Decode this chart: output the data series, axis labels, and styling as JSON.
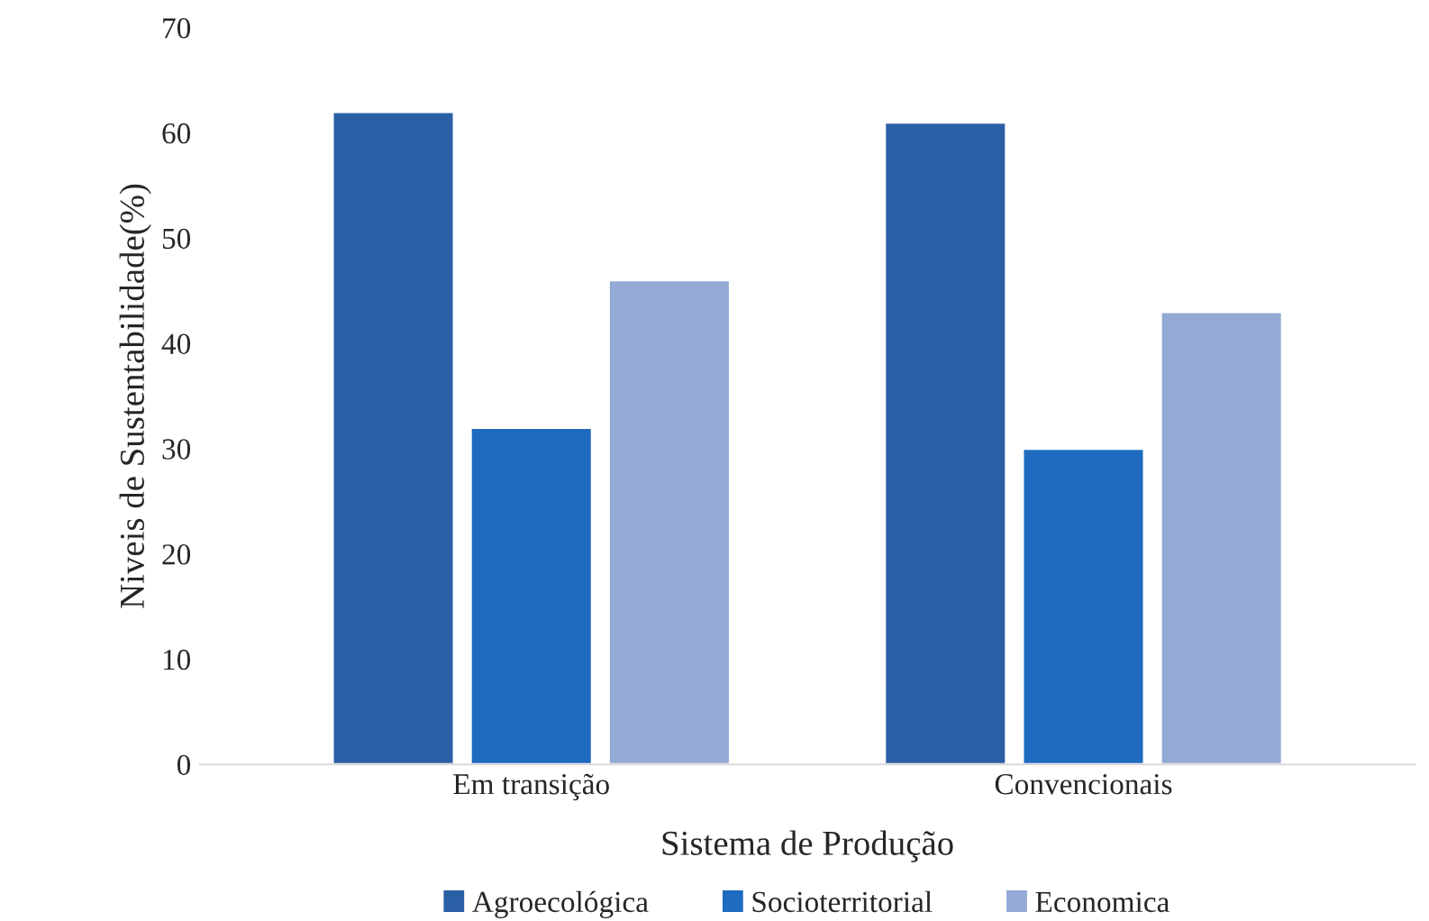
{
  "chart_data": {
    "type": "bar",
    "xlabel": "Sistema de Produção",
    "ylabel": "Niveis de Sustentabilidade(%)",
    "categories": [
      "Em transição",
      "Convencionais"
    ],
    "series": [
      {
        "name": "Agroecológica",
        "color": "#2b5fa5",
        "values": [
          62,
          61
        ]
      },
      {
        "name": "Socioterritorial",
        "color": "#1f6bbf",
        "values": [
          32,
          30
        ]
      },
      {
        "name": "Economica",
        "color": "#93a9d6",
        "values": [
          46,
          43
        ]
      }
    ],
    "ylim": [
      0,
      70
    ],
    "yticks": [
      0,
      10,
      20,
      30,
      40,
      50,
      60,
      70
    ],
    "grid": false,
    "legend": "bottom"
  }
}
